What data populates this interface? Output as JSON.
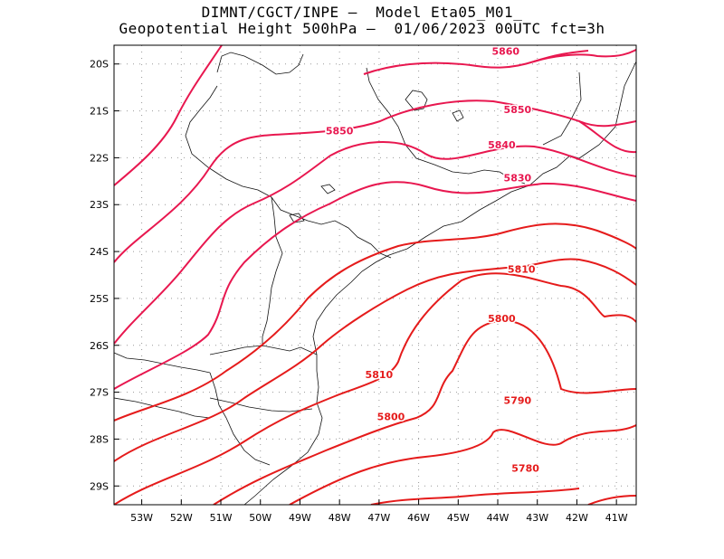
{
  "header": {
    "title_line1": "DIMNT/CGCT/INPE –  Model Eta05_M01_",
    "title_line2": "Geopotential Height 500hPa –  01/06/2023 00UTC fct=3h"
  },
  "map": {
    "lon_ticks": [
      "53W",
      "52W",
      "51W",
      "50W",
      "49W",
      "48W",
      "47W",
      "46W",
      "45W",
      "44W",
      "43W",
      "42W",
      "41W"
    ],
    "lat_ticks": [
      "20S",
      "21S",
      "22S",
      "23S",
      "24S",
      "25S",
      "26S",
      "27S",
      "28S",
      "29S"
    ],
    "lon_range": [
      -53.7,
      -40.5
    ],
    "lat_range": [
      -29.4,
      -19.6
    ],
    "grid": true,
    "grid_style": "dotted",
    "contour_colors": {
      "warm": "#e8174f",
      "cool": "#e51b1b"
    },
    "contours": [
      {
        "value": 5860,
        "label": "5860"
      },
      {
        "value": 5850,
        "label": "5850"
      },
      {
        "value": 5840,
        "label": "5840"
      },
      {
        "value": 5830,
        "label": "5830"
      },
      {
        "value": 5820,
        "label": ""
      },
      {
        "value": 5810,
        "label": "5810"
      },
      {
        "value": 5800,
        "label": "5800"
      },
      {
        "value": 5790,
        "label": "5790"
      },
      {
        "value": 5780,
        "label": "5780"
      }
    ],
    "contour_labels": [
      {
        "text": "5860",
        "lon": -43.8,
        "lat": -19.8
      },
      {
        "text": "5850",
        "lon": -43.5,
        "lat": -21.05
      },
      {
        "text": "5850",
        "lon": -48.0,
        "lat": -21.5
      },
      {
        "text": "5840",
        "lon": -43.9,
        "lat": -21.8
      },
      {
        "text": "5830",
        "lon": -43.5,
        "lat": -22.5
      },
      {
        "text": "5810",
        "lon": -43.4,
        "lat": -24.45
      },
      {
        "text": "5800",
        "lon": -43.9,
        "lat": -25.5
      },
      {
        "text": "5810",
        "lon": -47.0,
        "lat": -26.7
      },
      {
        "text": "5790",
        "lon": -43.5,
        "lat": -27.25
      },
      {
        "text": "5800",
        "lon": -46.7,
        "lat": -27.6
      },
      {
        "text": "5780",
        "lon": -43.3,
        "lat": -28.7
      }
    ]
  }
}
